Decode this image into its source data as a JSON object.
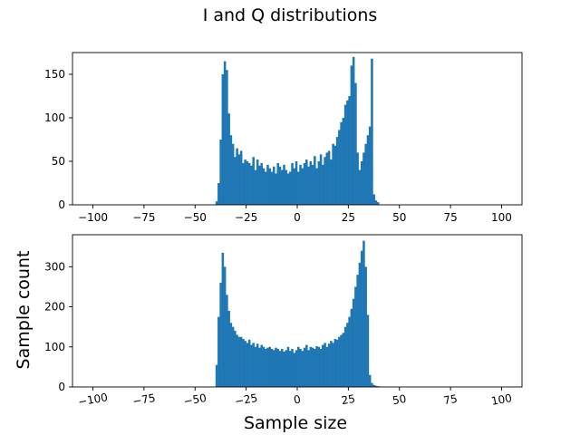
{
  "figure": {
    "title": "I and Q distributions",
    "xlabel": "Sample size",
    "ylabel": "Sample count"
  },
  "colors": {
    "bar": "#1f77b4",
    "axis": "#000000"
  },
  "chart_data": [
    {
      "type": "bar",
      "title": "",
      "xlabel": "",
      "ylabel": "",
      "xlim": [
        -110,
        110
      ],
      "ylim": [
        0,
        175
      ],
      "xticks": [
        -100,
        -75,
        -50,
        -25,
        0,
        25,
        50,
        75,
        100
      ],
      "xtick_labels": [
        "−100",
        "−75",
        "−50",
        "−25",
        "0",
        "25",
        "50",
        "75",
        "100"
      ],
      "yticks": [
        0,
        50,
        100,
        150
      ],
      "ytick_labels": [
        "0",
        "50",
        "100",
        "150"
      ],
      "xtick_rotation": 0,
      "grid": false,
      "bin_start": -40,
      "bin_width": 1,
      "values": [
        4,
        25,
        75,
        150,
        165,
        155,
        105,
        80,
        70,
        55,
        65,
        58,
        62,
        48,
        52,
        50,
        48,
        45,
        55,
        40,
        52,
        45,
        48,
        42,
        38,
        46,
        42,
        38,
        44,
        36,
        48,
        44,
        40,
        46,
        40,
        36,
        38,
        48,
        42,
        50,
        38,
        46,
        42,
        48,
        52,
        44,
        50,
        46,
        56,
        42,
        50,
        58,
        46,
        55,
        60,
        62,
        52,
        70,
        68,
        78,
        86,
        95,
        100,
        115,
        120,
        125,
        160,
        170,
        140,
        60,
        40,
        50,
        60,
        70,
        80,
        90,
        168,
        12,
        5,
        3
      ]
    },
    {
      "type": "bar",
      "title": "",
      "xlabel": "",
      "ylabel": "",
      "xlim": [
        -110,
        110
      ],
      "ylim": [
        0,
        380
      ],
      "xticks": [
        -100,
        -75,
        -50,
        -25,
        0,
        25,
        50,
        75,
        100
      ],
      "xtick_labels": [
        "−100",
        "−75",
        "−50",
        "−25",
        "0",
        "25",
        "50",
        "75",
        "100"
      ],
      "yticks": [
        0,
        100,
        200,
        300
      ],
      "ytick_labels": [
        "0",
        "100",
        "200",
        "300"
      ],
      "xtick_rotation": 10,
      "grid": false,
      "bin_start": -40,
      "bin_width": 1,
      "values": [
        55,
        175,
        260,
        335,
        300,
        230,
        190,
        160,
        150,
        140,
        130,
        125,
        125,
        120,
        115,
        110,
        118,
        105,
        110,
        100,
        108,
        98,
        105,
        100,
        95,
        98,
        100,
        95,
        92,
        98,
        95,
        90,
        95,
        88,
        92,
        100,
        90,
        95,
        85,
        92,
        100,
        95,
        90,
        98,
        105,
        92,
        100,
        98,
        95,
        102,
        100,
        95,
        105,
        110,
        100,
        108,
        115,
        110,
        120,
        118,
        125,
        130,
        135,
        150,
        160,
        175,
        195,
        220,
        250,
        280,
        310,
        340,
        365,
        300,
        180,
        30,
        10,
        5,
        3,
        2
      ]
    }
  ]
}
